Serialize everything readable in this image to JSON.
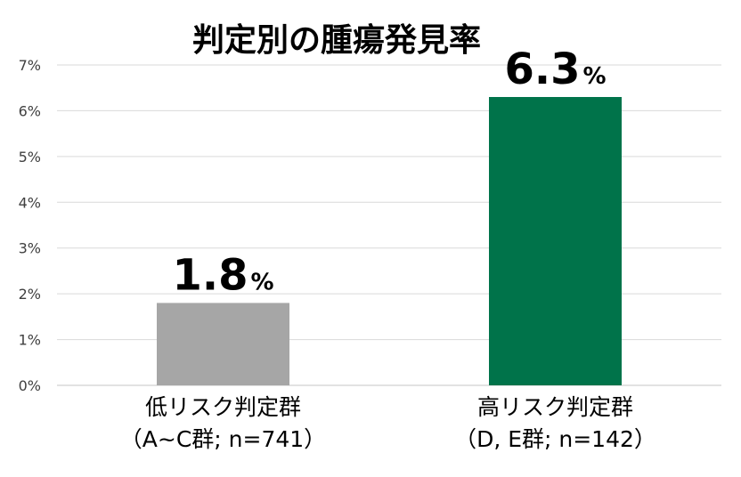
{
  "chart_data": {
    "type": "bar",
    "title": "判定別の腫瘍発見率",
    "categories": [
      [
        "低リスク判定群",
        "（A~C群; n=741）"
      ],
      [
        "高リスク判定群",
        "（D, E群; n=142）"
      ]
    ],
    "values": [
      1.8,
      6.3
    ],
    "data_labels": [
      {
        "number": "1.8",
        "unit": "%"
      },
      {
        "number": "6.3",
        "unit": "%"
      }
    ],
    "bar_colors": [
      "#A6A6A6",
      "#00734A"
    ],
    "y_ticks": [
      "0%",
      "1%",
      "2%",
      "3%",
      "4%",
      "5%",
      "6%",
      "7%"
    ],
    "ylim": [
      0,
      7
    ],
    "y_unit": "%",
    "grid": true,
    "legend": false,
    "grid_color": "#D9D9D9",
    "text_color": "#000000",
    "tick_color": "#404040"
  }
}
